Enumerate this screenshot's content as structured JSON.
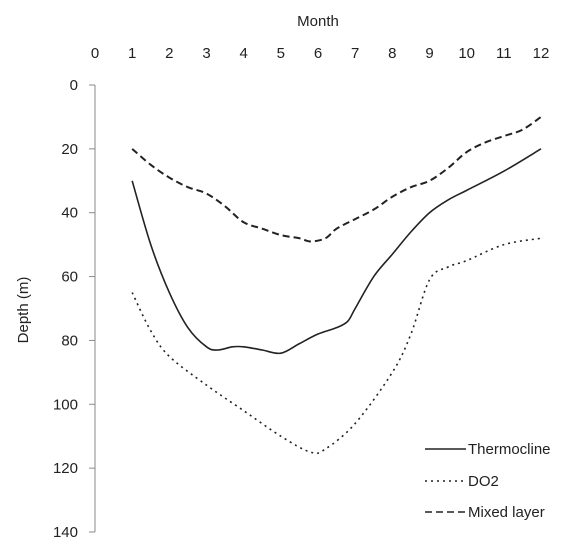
{
  "chart_data": {
    "type": "line",
    "xlabel": "Month",
    "ylabel": "Depth (m)",
    "x_axis_position": "top",
    "y_inverted": true,
    "xlim": [
      0,
      12
    ],
    "ylim": [
      0,
      140
    ],
    "x_ticks": [
      "0",
      "1",
      "2",
      "3",
      "4",
      "5",
      "6",
      "7",
      "8",
      "9",
      "10",
      "11",
      "12"
    ],
    "y_ticks": [
      "0",
      "20",
      "40",
      "60",
      "80",
      "100",
      "120",
      "140"
    ],
    "legend_position": "bottom-right",
    "grid": false,
    "series": [
      {
        "name": "Thermocline",
        "style": "solid",
        "color": "#222222",
        "x": [
          1,
          1.5,
          2,
          2.5,
          3,
          3.3,
          3.7,
          4,
          4.5,
          5,
          5.5,
          6,
          6.5,
          6.8,
          7,
          7.5,
          8,
          8.5,
          9,
          9.5,
          10,
          11,
          12
        ],
        "y": [
          30,
          50,
          65,
          76,
          82,
          83,
          82,
          82,
          83,
          84,
          81,
          78,
          76,
          74,
          70,
          60,
          53,
          46,
          40,
          36,
          33,
          27,
          20
        ]
      },
      {
        "name": "DO2",
        "style": "dotted",
        "color": "#222222",
        "x": [
          1,
          1.5,
          2,
          3,
          4,
          5,
          5.8,
          6.2,
          7,
          8,
          8.5,
          9,
          9.5,
          10,
          11,
          12
        ],
        "y": [
          65,
          77,
          85,
          94,
          102,
          110,
          115,
          114,
          106,
          90,
          78,
          61,
          57,
          55,
          50,
          48
        ]
      },
      {
        "name": "Mixed layer",
        "style": "dashed",
        "color": "#222222",
        "x": [
          1,
          1.5,
          2,
          2.5,
          3,
          3.5,
          4,
          4.5,
          5,
          5.5,
          5.8,
          6.2,
          6.5,
          7,
          7.5,
          8,
          8.5,
          9,
          9.5,
          10,
          10.5,
          11,
          11.5,
          12
        ],
        "y": [
          20,
          25,
          29,
          32,
          34,
          38,
          43,
          45,
          47,
          48,
          49,
          48,
          45,
          42,
          39,
          35,
          32,
          30,
          26,
          21,
          18,
          16,
          14,
          10
        ]
      }
    ]
  }
}
